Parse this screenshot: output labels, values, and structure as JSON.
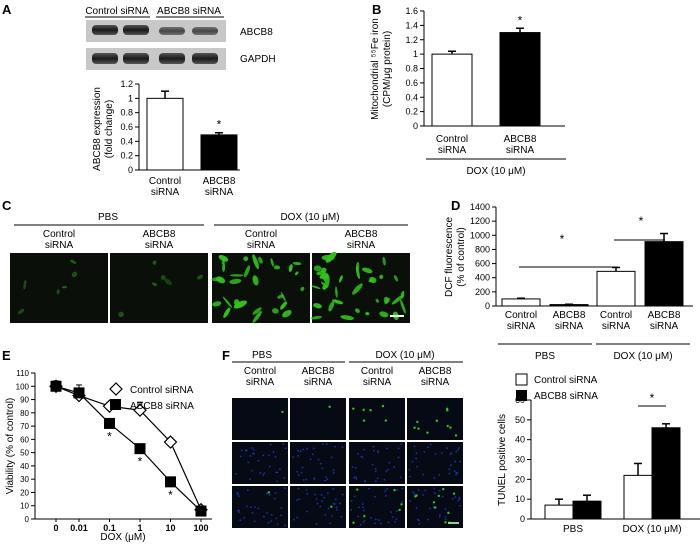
{
  "colors": {
    "control": "#ffffff",
    "abcb8": "#000000",
    "gfp": "#34c41e",
    "nuclei": "#1e3cd2",
    "cell_bg": "#0a0f0a"
  },
  "panels": {
    "A": {
      "letter": "A",
      "blot_headers": [
        "Control siRNA",
        "ABCB8 siRNA"
      ],
      "blot_labels": [
        "ABCB8",
        "GAPDH"
      ],
      "chart_data": {
        "type": "bar",
        "categories": [
          "Control siRNA",
          "ABCB8 siRNA"
        ],
        "category_lines": [
          [
            "Control",
            "siRNA"
          ],
          [
            "ABCB8",
            "siRNA"
          ]
        ],
        "values": [
          1.0,
          0.49
        ],
        "errors": [
          0.1,
          0.03
        ],
        "ylabel_lines": [
          "ABCB8 expression",
          "(fold change)"
        ],
        "ylim": [
          0,
          1.2
        ],
        "yticks": [
          "0",
          "0.2",
          "0.4",
          "0.6",
          "0.8",
          "1",
          "1.2"
        ],
        "annotations": [
          "*"
        ]
      }
    },
    "B": {
      "letter": "B",
      "chart_data": {
        "type": "bar",
        "categories": [
          "Control siRNA",
          "ABCB8 siRNA"
        ],
        "category_lines": [
          [
            "Control",
            "siRNA"
          ],
          [
            "ABCB8",
            "siRNA"
          ]
        ],
        "group_label": "DOX (10 μM)",
        "values": [
          1.0,
          1.3
        ],
        "errors": [
          0.04,
          0.06
        ],
        "ylabel_lines": [
          "Mitochondrial ⁵⁵Fe iron",
          "(CPM/μg protein)"
        ],
        "ylim": [
          0,
          1.6
        ],
        "yticks": [
          "0",
          "0.2",
          "0.4",
          "0.6",
          "0.8",
          "1",
          "1.2",
          "1.4",
          "1.6"
        ],
        "annotations": [
          "*"
        ]
      }
    },
    "C": {
      "letter": "C",
      "group_labels": [
        "PBS",
        "DOX (10 μM)"
      ],
      "columns": [
        [
          "Control",
          "siRNA"
        ],
        [
          "ABCB8",
          "siRNA"
        ],
        [
          "Control",
          "siRNA"
        ],
        [
          "ABCB8",
          "siRNA"
        ]
      ],
      "cell_density": [
        0.15,
        0.15,
        0.75,
        0.95
      ]
    },
    "D": {
      "letter": "D",
      "chart_data": {
        "type": "bar",
        "categories": [
          "Control siRNA",
          "ABCB8 siRNA",
          "Control siRNA",
          "ABCB8 siRNA"
        ],
        "category_lines": [
          [
            "Control",
            "siRNA"
          ],
          [
            "ABCB8",
            "siRNA"
          ],
          [
            "Control",
            "siRNA"
          ],
          [
            "ABCB8",
            "siRNA"
          ]
        ],
        "groups": [
          "PBS",
          "DOX (10 μM)"
        ],
        "values": [
          100,
          20,
          490,
          910
        ],
        "errors": [
          10,
          5,
          55,
          115
        ],
        "ylabel_lines": [
          "DCF fluorescence",
          "(% of control)"
        ],
        "ylim": [
          0,
          1400
        ],
        "yticks": [
          "0",
          "200",
          "400",
          "600",
          "800",
          "1000",
          "1200",
          "1400"
        ],
        "annotations": [
          "*",
          "*"
        ]
      }
    },
    "E": {
      "letter": "E",
      "chart_data": {
        "type": "line",
        "x": [
          0,
          0.01,
          0.1,
          1,
          10,
          100
        ],
        "xtick_labels": [
          "0",
          "0.01",
          "0.1",
          "1",
          "10",
          "100"
        ],
        "series": [
          {
            "name": "Control siRNA",
            "values": [
              100,
              93,
              85,
              82,
              58,
              7
            ],
            "errors": [
              4,
              3,
              3,
              6,
              3,
              2
            ]
          },
          {
            "name": "ABCB8 siRNA",
            "values": [
              100,
              95,
              72,
              53,
              28,
              6
            ],
            "errors": [
              4,
              6,
              3,
              3,
              2,
              2
            ]
          }
        ],
        "xlabel": "DOX (μM)",
        "ylabel": "Viability (% of control)",
        "ylim": [
          0,
          110
        ],
        "yticks": [
          "0",
          "10",
          "20",
          "30",
          "40",
          "50",
          "60",
          "70",
          "80",
          "90",
          "100",
          "110"
        ],
        "annotations": [
          "*",
          "*",
          "*"
        ],
        "legend": "top-right"
      }
    },
    "F": {
      "letter": "F",
      "group_labels": [
        "PBS",
        "DOX (10 μM)"
      ],
      "columns": [
        [
          "Control",
          "siRNA"
        ],
        [
          "ABCB8",
          "siRNA"
        ],
        [
          "Control",
          "siRNA"
        ],
        [
          "ABCB8",
          "siRNA"
        ]
      ],
      "chart_data": {
        "type": "bar",
        "categories": [
          "PBS",
          "DOX (10 μM)"
        ],
        "series": [
          {
            "name": "Control siRNA",
            "values": [
              7,
              22
            ],
            "errors": [
              3,
              6
            ]
          },
          {
            "name": "ABCB8 siRNA",
            "values": [
              9,
              46
            ],
            "errors": [
              3,
              2
            ]
          }
        ],
        "ylabel": "TUNEL positive cells",
        "ylim": [
          0,
          60
        ],
        "yticks": [
          "0",
          "10",
          "20",
          "30",
          "40",
          "50",
          "60"
        ],
        "annotations": [
          "*"
        ],
        "legend": "top-left"
      }
    }
  }
}
